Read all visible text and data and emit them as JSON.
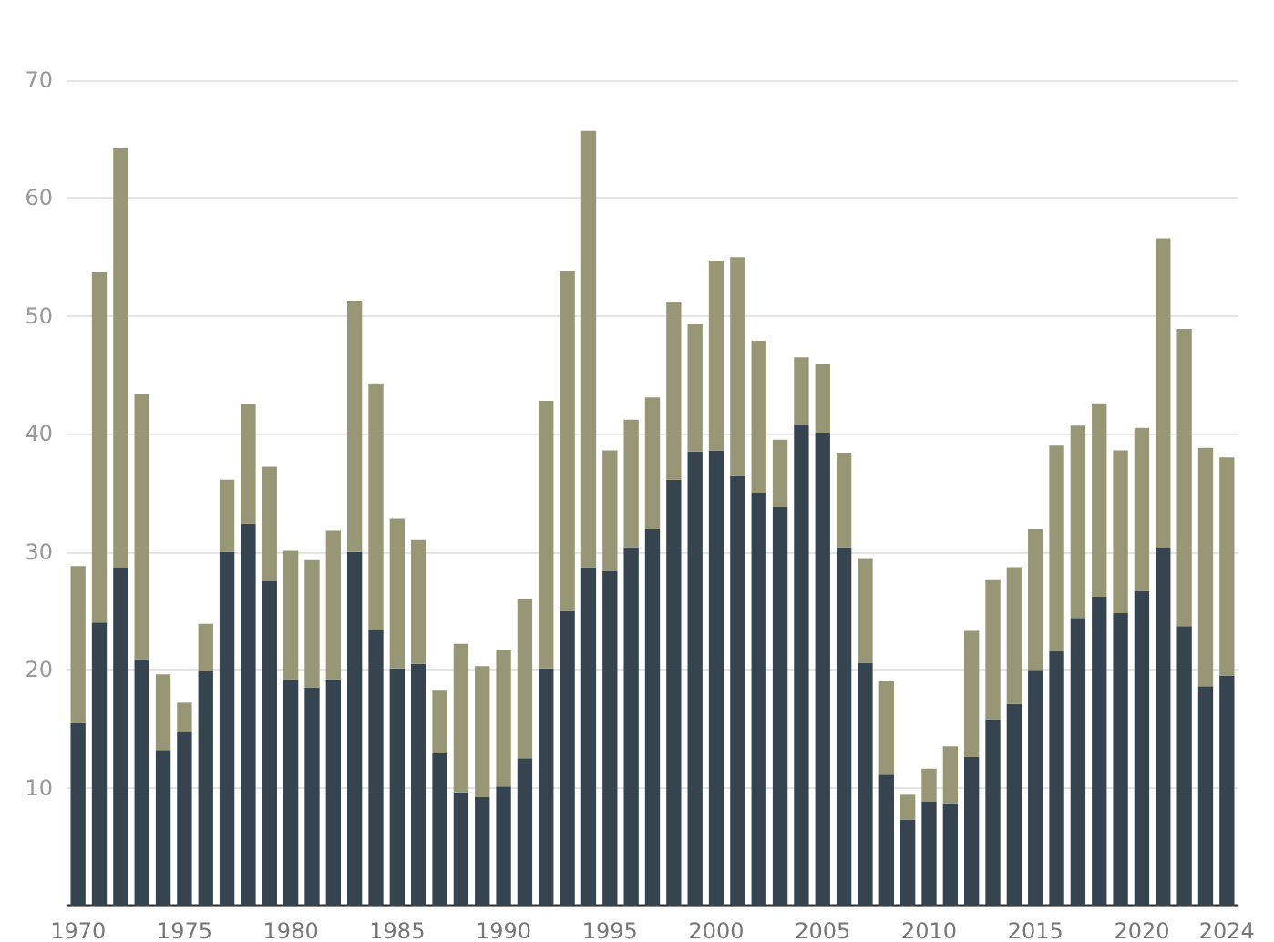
{
  "chart_data": {
    "type": "bar",
    "stacked": true,
    "categories": [
      "1970",
      null,
      null,
      null,
      null,
      "1975",
      null,
      null,
      null,
      null,
      "1980",
      null,
      null,
      null,
      null,
      "1985",
      null,
      null,
      null,
      null,
      "1990",
      null,
      null,
      null,
      null,
      "1995",
      null,
      null,
      null,
      null,
      "2000",
      null,
      null,
      null,
      null,
      "2005",
      null,
      null,
      null,
      null,
      "2010",
      null,
      null,
      null,
      null,
      "2015",
      null,
      null,
      null,
      null,
      "2020",
      null,
      null,
      null,
      "2024"
    ],
    "series": [
      {
        "color": "#36444f",
        "values": [
          15.5,
          24,
          28.6,
          20.9,
          13.2,
          14.7,
          19.9,
          30,
          32.4,
          27.5,
          19.2,
          18.5,
          19.2,
          30,
          23.4,
          20.1,
          20.5,
          12.9,
          9.6,
          9.2,
          10.1,
          12.5,
          20.1,
          25,
          28.7,
          28.4,
          30.4,
          31.9,
          36.1,
          38.5,
          38.6,
          36.5,
          35,
          33.8,
          40.8,
          40.1,
          30.4,
          20.6,
          11.1,
          7.3,
          8.8,
          8.7,
          12.6,
          15.8,
          17.1,
          20,
          21.6,
          24.4,
          26.2,
          24.8,
          26.7,
          30.3,
          23.7,
          18.6,
          19.5
        ]
      },
      {
        "color": "#979775",
        "values": [
          13.3,
          29.7,
          35.6,
          22.5,
          6.4,
          2.5,
          4,
          6.1,
          10.1,
          9.7,
          10.9,
          10.8,
          12.6,
          21.3,
          20.9,
          12.7,
          10.5,
          5.4,
          12.6,
          11.1,
          11.6,
          13.5,
          22.7,
          28.8,
          37,
          10.2,
          10.8,
          11.2,
          15.1,
          10.8,
          16.1,
          18.5,
          12.9,
          5.7,
          5.7,
          5.8,
          8,
          8.8,
          7.9,
          2.1,
          2.8,
          4.8,
          10.7,
          11.8,
          11.6,
          11.9,
          17.4,
          16.3,
          16.4,
          13.8,
          13.8,
          26.3,
          25.2,
          20.2,
          18.5
        ]
      }
    ],
    "ylim": [
      0,
      70
    ],
    "yticks": [
      {
        "value": 0,
        "label": null
      },
      10,
      20,
      30,
      40,
      50,
      60,
      70
    ],
    "grid": "y"
  }
}
